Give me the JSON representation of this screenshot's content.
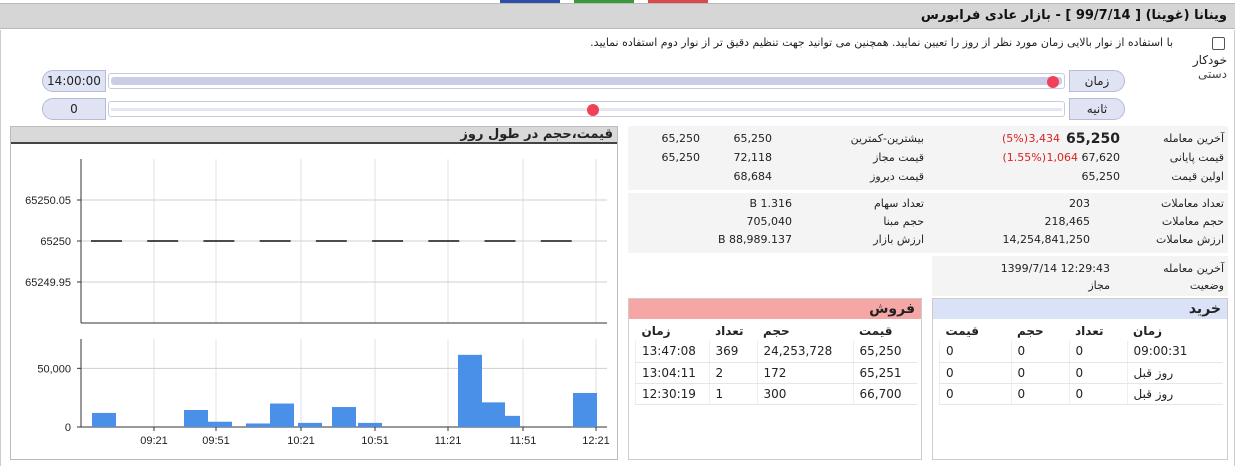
{
  "title": "وینانا (غوینا) [ 99/7/14 ] - بازار عادی فرابورس",
  "colors": {
    "tab1": "#2f4ea8",
    "tab2": "#3a9a3a",
    "tab3": "#d94a4a",
    "sell_header": "#f7a6a6",
    "buy_header": "#d9e2f7",
    "bar": "#4a8fe8",
    "knob": "#f0415a"
  },
  "controls": {
    "hint": "با استفاده از نوار بالایی زمان مورد نظر از روز را تعیین نمایید. همچنین می توانید جهت تنظیم دقیق تر از نوار دوم استفاده نمایید.",
    "auto_label": "خودکار",
    "manual_label": "دستی",
    "time_label": "زمان",
    "time_value": "14:00:00",
    "time_level": 1.0,
    "second_label": "ثانیه",
    "second_value": "0",
    "second_level": 0.5
  },
  "chart": {
    "title": "قیمت،حجم در طول روز",
    "price_ticks": [
      "65250.05",
      "65250",
      "65249.95"
    ],
    "volume_ticks": [
      "50,000",
      "0"
    ],
    "x_ticks": [
      "09:21",
      "09:51",
      "10:21",
      "10:51",
      "11:21",
      "11:51",
      "12:21"
    ]
  },
  "chart_data": {
    "type": "bar",
    "title": "قیمت،حجم در طول روز",
    "price_series": {
      "ylim": [
        65249.9,
        65250.1
      ],
      "values": [
        65250,
        65250,
        65250,
        65250,
        65250,
        65250,
        65250,
        65250,
        65250,
        65250
      ]
    },
    "volume_series": {
      "ylim": [
        0,
        75000
      ],
      "x": [
        "09:06",
        "09:21",
        "09:36",
        "09:51",
        "09:58",
        "10:11",
        "10:21",
        "10:31",
        "10:51",
        "11:06",
        "11:21",
        "11:31",
        "11:41",
        "11:51",
        "12:06",
        "12:21"
      ],
      "values": [
        12000,
        0,
        0,
        14500,
        4500,
        3000,
        20000,
        3500,
        17000,
        3500,
        61500,
        21000,
        9500,
        0,
        0,
        29000
      ]
    }
  },
  "summary_left": {
    "rows": [
      {
        "label": "آخرین معامله",
        "value": "65,250",
        "change": "3,434",
        "pct": "(5%)"
      },
      {
        "label": "قیمت پایانی",
        "value": "67,620",
        "change": "1,064",
        "pct": "(1.55%)"
      },
      {
        "label": "اولین قیمت",
        "value": "65,250"
      }
    ]
  },
  "summary_mid": {
    "rows": [
      {
        "label": "بیشترین-کمترین",
        "v1": "65,250",
        "v2": "65,250"
      },
      {
        "label": "قیمت مجاز",
        "v1": "72,118",
        "v2": "65,250"
      },
      {
        "label": "قیمت دیروز",
        "v1": "68,684"
      }
    ]
  },
  "stats_left": {
    "rows": [
      {
        "label": "تعداد معاملات",
        "value": "203"
      },
      {
        "label": "حجم معاملات",
        "value": "218,465"
      },
      {
        "label": "ارزش معاملات",
        "value": "14,254,841,250"
      }
    ]
  },
  "stats_mid": {
    "rows": [
      {
        "label": "تعداد سهام",
        "value": "1.316 B"
      },
      {
        "label": "حجم مبنا",
        "value": "705,040"
      },
      {
        "label": "ارزش بازار",
        "value": "88,989.137 B"
      }
    ]
  },
  "status": {
    "rows": [
      {
        "label": "آخرین معامله",
        "value": "12:29:43 1399/7/14"
      },
      {
        "label": "وضعیت",
        "value": "مجاز"
      }
    ]
  },
  "buy": {
    "title": "خرید",
    "headers": [
      "زمان",
      "تعداد",
      "حجم",
      "قیمت"
    ],
    "rows": [
      [
        "09:00:31",
        "0",
        "0",
        "0"
      ],
      [
        "روز قبل",
        "0",
        "0",
        "0"
      ],
      [
        "روز قبل",
        "0",
        "0",
        "0"
      ]
    ]
  },
  "sell": {
    "title": "فروش",
    "headers": [
      "قیمت",
      "حجم",
      "تعداد",
      "زمان"
    ],
    "rows": [
      [
        "65,250",
        "24,253,728",
        "369",
        "13:47:08"
      ],
      [
        "65,251",
        "172",
        "2",
        "13:04:11"
      ],
      [
        "66,700",
        "300",
        "1",
        "12:30:19"
      ]
    ]
  }
}
